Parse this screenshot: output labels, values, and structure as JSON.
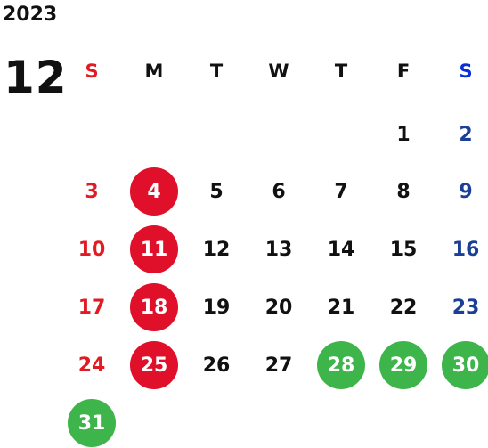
{
  "calendar": {
    "year": "2023",
    "month": "12",
    "weekdays": [
      "S",
      "M",
      "T",
      "W",
      "T",
      "F",
      "S"
    ],
    "days": [
      {
        "label": "1"
      },
      {
        "label": "2"
      },
      {
        "label": "3"
      },
      {
        "label": "4"
      },
      {
        "label": "5"
      },
      {
        "label": "6"
      },
      {
        "label": "7"
      },
      {
        "label": "8"
      },
      {
        "label": "9"
      },
      {
        "label": "10"
      },
      {
        "label": "11"
      },
      {
        "label": "12"
      },
      {
        "label": "13"
      },
      {
        "label": "14"
      },
      {
        "label": "15"
      },
      {
        "label": "16"
      },
      {
        "label": "17"
      },
      {
        "label": "18"
      },
      {
        "label": "19"
      },
      {
        "label": "20"
      },
      {
        "label": "21"
      },
      {
        "label": "22"
      },
      {
        "label": "23"
      },
      {
        "label": "24"
      },
      {
        "label": "25"
      },
      {
        "label": "26"
      },
      {
        "label": "27"
      },
      {
        "label": "28"
      },
      {
        "label": "29"
      },
      {
        "label": "30"
      },
      {
        "label": "31"
      }
    ],
    "highlighted_red": [
      "4",
      "11",
      "18",
      "25"
    ],
    "highlighted_green": [
      "28",
      "29",
      "30",
      "31"
    ],
    "colors": {
      "sunday": "#e01b23",
      "saturday": "#1a3f96",
      "weekday": "#111111",
      "sunday_header": "#e01b23",
      "saturday_header": "#0a2fd6",
      "red_highlight": "#e0102a",
      "green_highlight": "#3db54a"
    }
  }
}
